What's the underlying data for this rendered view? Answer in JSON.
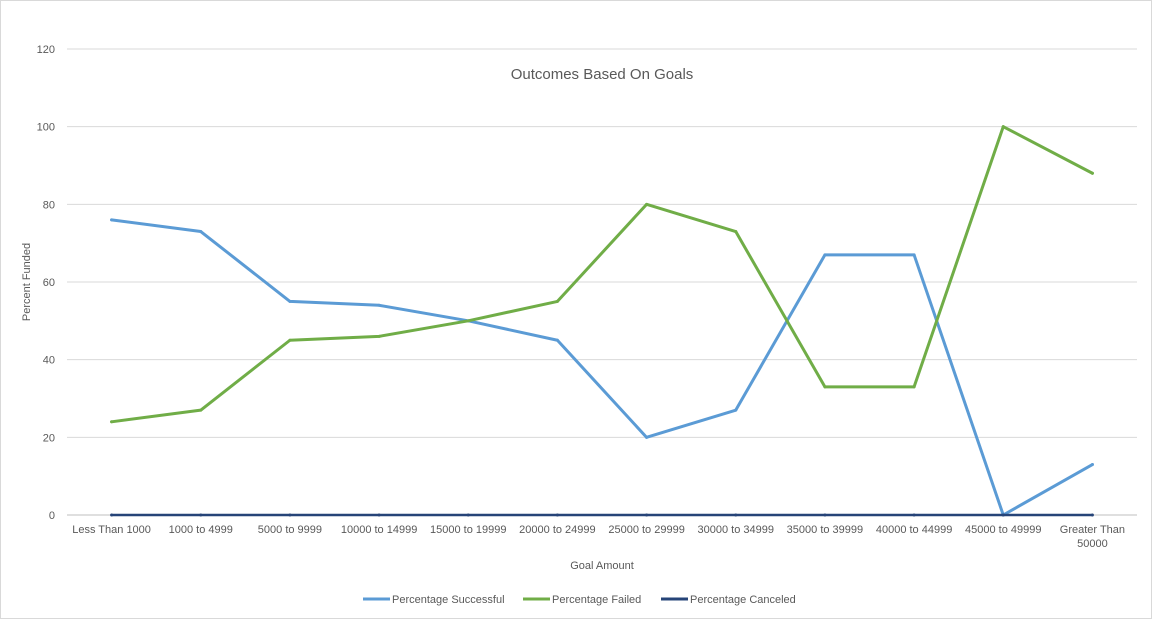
{
  "chart_data": {
    "type": "line",
    "title": "Outcomes Based On Goals",
    "xlabel": "Goal Amount",
    "ylabel": "Percent Funded",
    "categories": [
      "Less Than 1000",
      "1000 to 4999",
      "5000 to 9999",
      "10000 to 14999",
      "15000 to 19999",
      "20000 to 24999",
      "25000 to 29999",
      "30000 to 34999",
      "35000 to 39999",
      "40000 to 44999",
      "45000 to 49999",
      "Greater Than 50000"
    ],
    "series": [
      {
        "name": "Percentage Successful",
        "color": "#5b9bd5",
        "values": [
          76,
          73,
          55,
          54,
          50,
          45,
          20,
          27,
          67,
          67,
          0,
          13
        ]
      },
      {
        "name": "Percentage Failed",
        "color": "#70ad47",
        "values": [
          24,
          27,
          45,
          46,
          50,
          55,
          80,
          73,
          33,
          33,
          100,
          88
        ]
      },
      {
        "name": "Percentage Canceled",
        "color": "#264478",
        "values": [
          0,
          0,
          0,
          0,
          0,
          0,
          0,
          0,
          0,
          0,
          0,
          0
        ]
      }
    ],
    "ylim": [
      0,
      120
    ],
    "yticks": [
      "0",
      "20",
      "40",
      "60",
      "80",
      "100",
      "120"
    ],
    "grid": true,
    "legend_position": "bottom"
  }
}
